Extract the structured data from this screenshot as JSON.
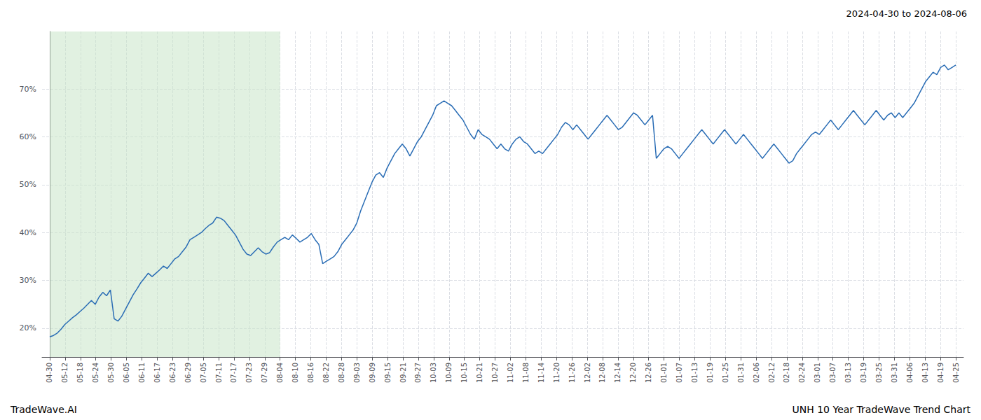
{
  "chart_data": {
    "type": "line",
    "title": "2024-04-30 to 2024-08-06",
    "annotations": [
      {
        "text": "TradeWave.AI"
      },
      {
        "text": "UNH 10 Year TradeWave Trend Chart"
      }
    ],
    "color": "#2a6db5",
    "grid": true,
    "shaded_region": {
      "start": 0,
      "end": 15,
      "color": "#c8e6c9"
    },
    "xlim": [
      -0.5,
      59.5
    ],
    "xticks": [
      {
        "value": 0,
        "label": "04-30"
      },
      {
        "value": 1,
        "label": "05-12"
      },
      {
        "value": 2,
        "label": "05-18"
      },
      {
        "value": 3,
        "label": "05-24"
      },
      {
        "value": 4,
        "label": "05-30"
      },
      {
        "value": 5,
        "label": "06-05"
      },
      {
        "value": 6,
        "label": "06-11"
      },
      {
        "value": 7,
        "label": "06-17"
      },
      {
        "value": 8,
        "label": "06-23"
      },
      {
        "value": 9,
        "label": "06-29"
      },
      {
        "value": 10,
        "label": "07-05"
      },
      {
        "value": 11,
        "label": "07-11"
      },
      {
        "value": 12,
        "label": "07-17"
      },
      {
        "value": 13,
        "label": "07-23"
      },
      {
        "value": 14,
        "label": "07-29"
      },
      {
        "value": 15,
        "label": "08-04"
      },
      {
        "value": 16,
        "label": "08-10"
      },
      {
        "value": 17,
        "label": "08-16"
      },
      {
        "value": 18,
        "label": "08-22"
      },
      {
        "value": 19,
        "label": "08-28"
      },
      {
        "value": 20,
        "label": "09-03"
      },
      {
        "value": 21,
        "label": "09-09"
      },
      {
        "value": 22,
        "label": "09-15"
      },
      {
        "value": 23,
        "label": "09-21"
      },
      {
        "value": 24,
        "label": "09-27"
      },
      {
        "value": 25,
        "label": "10-03"
      },
      {
        "value": 26,
        "label": "10-09"
      },
      {
        "value": 27,
        "label": "10-15"
      },
      {
        "value": 28,
        "label": "10-21"
      },
      {
        "value": 29,
        "label": "10-27"
      },
      {
        "value": 30,
        "label": "11-02"
      },
      {
        "value": 31,
        "label": "11-08"
      },
      {
        "value": 32,
        "label": "11-14"
      },
      {
        "value": 33,
        "label": "11-20"
      },
      {
        "value": 34,
        "label": "11-26"
      },
      {
        "value": 35,
        "label": "12-02"
      },
      {
        "value": 36,
        "label": "12-08"
      },
      {
        "value": 37,
        "label": "12-14"
      },
      {
        "value": 38,
        "label": "12-20"
      },
      {
        "value": 39,
        "label": "12-26"
      },
      {
        "value": 40,
        "label": "01-01"
      },
      {
        "value": 41,
        "label": "01-07"
      },
      {
        "value": 42,
        "label": "01-13"
      },
      {
        "value": 43,
        "label": "01-19"
      },
      {
        "value": 44,
        "label": "01-25"
      },
      {
        "value": 45,
        "label": "01-31"
      },
      {
        "value": 46,
        "label": "02-06"
      },
      {
        "value": 47,
        "label": "02-12"
      },
      {
        "value": 48,
        "label": "02-18"
      },
      {
        "value": 49,
        "label": "02-24"
      },
      {
        "value": 50,
        "label": "03-01"
      },
      {
        "value": 51,
        "label": "03-07"
      },
      {
        "value": 52,
        "label": "03-13"
      },
      {
        "value": 53,
        "label": "03-19"
      },
      {
        "value": 54,
        "label": "03-25"
      },
      {
        "value": 55,
        "label": "03-31"
      },
      {
        "value": 56,
        "label": "04-06"
      },
      {
        "value": 57,
        "label": "04-13"
      },
      {
        "value": 58,
        "label": "04-19"
      },
      {
        "value": 59,
        "label": "04-25"
      }
    ],
    "ylim": [
      14,
      82
    ],
    "yticks": [
      {
        "value": 20,
        "label": "20%"
      },
      {
        "value": 30,
        "label": "30%"
      },
      {
        "value": 40,
        "label": "40%"
      },
      {
        "value": 50,
        "label": "50%"
      },
      {
        "value": 60,
        "label": "60%"
      },
      {
        "value": 70,
        "label": "70%"
      }
    ],
    "x": [
      0,
      0.2469,
      0.4937,
      0.7406,
      0.9874,
      1.2343,
      1.4812,
      1.728,
      1.9749,
      2.2218,
      2.4686,
      2.7155,
      2.9623,
      3.2092,
      3.4561,
      3.7029,
      3.9498,
      4.1967,
      4.4435,
      4.6904,
      4.9372,
      5.1841,
      5.431,
      5.6778,
      5.9247,
      6.1715,
      6.4184,
      6.6653,
      6.9121,
      7.159,
      7.4059,
      7.6527,
      7.8996,
      8.1464,
      8.3933,
      8.6402,
      8.887,
      9.1339,
      9.3808,
      9.6276,
      9.8745,
      10.1213,
      10.3682,
      10.6151,
      10.8619,
      11.1088,
      11.3556,
      11.6025,
      11.8494,
      12.0962,
      12.3431,
      12.59,
      12.8368,
      13.0837,
      13.3305,
      13.5774,
      13.8243,
      14.0711,
      14.318,
      14.5649,
      14.8117,
      15.0586,
      15.3054,
      15.5523,
      15.7992,
      16.046,
      16.2929,
      16.5397,
      16.7866,
      17.0335,
      17.2803,
      17.5272,
      17.7741,
      18.0209,
      18.2678,
      18.5146,
      18.7615,
      19.0084,
      19.2552,
      19.5021,
      19.749,
      19.9958,
      20.2427,
      20.4895,
      20.7364,
      20.9833,
      21.2301,
      21.477,
      21.7238,
      21.9707,
      22.2176,
      22.4644,
      22.7113,
      22.9582,
      23.205,
      23.4519,
      23.6987,
      23.9456,
      24.1925,
      24.4393,
      24.6862,
      24.9331,
      25.1799,
      25.4268,
      25.6736,
      25.9205,
      26.1674,
      26.4142,
      26.6611,
      26.9079,
      27.1548,
      27.4017,
      27.6485,
      27.8954,
      28.1423,
      28.3891,
      28.636,
      28.8828,
      29.1297,
      29.3766,
      29.6234,
      29.8703,
      30.1172,
      30.364,
      30.6109,
      30.8577,
      31.1046,
      31.3515,
      31.5983,
      31.8452,
      32.0921,
      32.3389,
      32.5858,
      32.8326,
      33.0795,
      33.3264,
      33.5732,
      33.8201,
      34.0669,
      34.3138,
      34.5607,
      34.8075,
      35.0544,
      35.3013,
      35.5481,
      35.795,
      36.0418,
      36.2887,
      36.5356,
      36.7824,
      37.0293,
      37.2762,
      37.523,
      37.7699,
      38.0167,
      38.2636,
      38.5105,
      38.7573,
      39.0042,
      39.251,
      39.4979,
      39.7448,
      39.9916,
      40.2385,
      40.4854,
      40.7322,
      40.9791,
      41.2259,
      41.4728,
      41.7197,
      41.9665,
      42.2134,
      42.4603,
      42.7071,
      42.954,
      43.2008,
      43.4477,
      43.6946,
      43.9414,
      44.1883,
      44.4351,
      44.682,
      44.9289,
      45.1757,
      45.4226,
      45.6695,
      45.9163,
      46.1632,
      46.41,
      46.6569,
      46.9038,
      47.1506,
      47.3975,
      47.6444,
      47.8912,
      48.1381,
      48.3849,
      48.6318,
      48.8787,
      49.1255,
      49.3724,
      49.6192,
      49.8661,
      50.113,
      50.3598,
      50.6067,
      50.8536,
      51.1004,
      51.3473,
      51.5941,
      51.841,
      52.0879,
      52.3347,
      52.5816,
      52.8285,
      53.0753,
      53.3222,
      53.569,
      53.8159,
      54.0628,
      54.3096,
      54.5565,
      54.8033,
      55.0502,
      55.2971,
      55.5439,
      55.7908,
      56.0377,
      56.2845,
      56.5314,
      56.7782,
      57.0251,
      57.272,
      57.5188,
      57.7657,
      58.0126,
      58.2594,
      58.5063,
      58.7531,
      59
    ],
    "values": [
      18.2,
      18.5,
      19.0,
      19.8,
      20.8,
      21.5,
      22.2,
      22.8,
      23.5,
      24.2,
      25.0,
      25.8,
      25.0,
      26.5,
      27.5,
      26.8,
      28.0,
      22.0,
      21.5,
      22.5,
      24.0,
      25.5,
      27.0,
      28.2,
      29.5,
      30.5,
      31.5,
      30.8,
      31.5,
      32.2,
      33.0,
      32.5,
      33.5,
      34.5,
      35.0,
      36.0,
      37.0,
      38.5,
      39.0,
      39.5,
      40.0,
      40.8,
      41.5,
      42.0,
      43.2,
      43.0,
      42.5,
      41.5,
      40.5,
      39.5,
      38.0,
      36.5,
      35.5,
      35.2,
      36.0,
      36.8,
      36.0,
      35.5,
      35.8,
      37.0,
      38.0,
      38.5,
      39.0,
      38.5,
      39.5,
      38.8,
      38.0,
      38.5,
      39.0,
      39.8,
      38.5,
      37.5,
      33.5,
      34.0,
      34.5,
      35.0,
      36.0,
      37.5,
      38.5,
      39.5,
      40.5,
      42.0,
      44.5,
      46.5,
      48.5,
      50.5,
      52.0,
      52.5,
      51.5,
      53.5,
      55.0,
      56.5,
      57.5,
      58.5,
      57.5,
      56.0,
      57.5,
      59.0,
      60.0,
      61.5,
      63.0,
      64.5,
      66.5,
      67.0,
      67.5,
      67.0,
      66.5,
      65.5,
      64.5,
      63.5,
      62.0,
      60.5,
      59.5,
      61.5,
      60.5,
      60.0,
      59.5,
      58.5,
      57.5,
      58.5,
      57.5,
      57.0,
      58.5,
      59.5,
      60.0,
      59.0,
      58.5,
      57.5,
      56.5,
      57.0,
      56.5,
      57.5,
      58.5,
      59.5,
      60.5,
      62.0,
      63.0,
      62.5,
      61.5,
      62.5,
      61.5,
      60.5,
      59.5,
      60.5,
      61.5,
      62.5,
      63.5,
      64.5,
      63.5,
      62.5,
      61.5,
      62.0,
      63.0,
      64.0,
      65.0,
      64.5,
      63.5,
      62.5,
      63.5,
      64.5,
      55.5,
      56.5,
      57.5,
      58.0,
      57.5,
      56.5,
      55.5,
      56.5,
      57.5,
      58.5,
      59.5,
      60.5,
      61.5,
      60.5,
      59.5,
      58.5,
      59.5,
      60.5,
      61.5,
      60.5,
      59.5,
      58.5,
      59.5,
      60.5,
      59.5,
      58.5,
      57.5,
      56.5,
      55.5,
      56.5,
      57.5,
      58.5,
      57.5,
      56.5,
      55.5,
      54.5,
      55.0,
      56.5,
      57.5,
      58.5,
      59.5,
      60.5,
      61.0,
      60.5,
      61.5,
      62.5,
      63.5,
      62.5,
      61.5,
      62.5,
      63.5,
      64.5,
      65.5,
      64.5,
      63.5,
      62.5,
      63.5,
      64.5,
      65.5,
      64.5,
      63.5,
      64.5,
      65.0,
      64.0,
      65.0,
      64.0,
      65.0,
      66.0,
      67.0,
      68.5,
      70.0,
      71.5,
      72.5,
      73.5,
      73.0,
      74.5,
      75.0,
      74.0,
      74.5,
      75.0
    ]
  }
}
